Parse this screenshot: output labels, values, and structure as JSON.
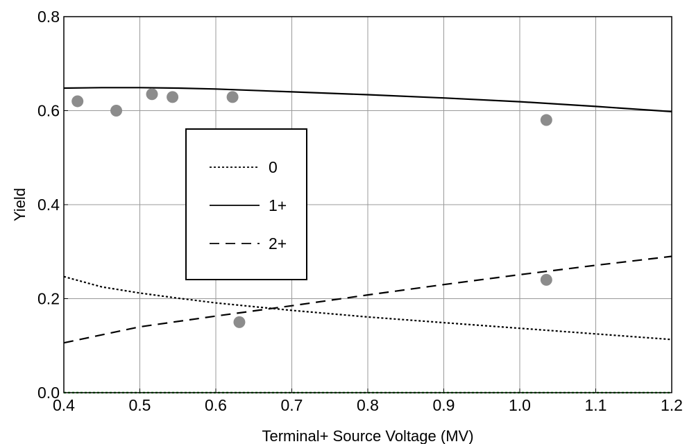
{
  "chart_data": {
    "type": "line",
    "title": "",
    "xlabel": "Terminal+ Source Voltage  (MV)",
    "ylabel": "Yield",
    "xlim": [
      0.4,
      1.2
    ],
    "ylim": [
      0.0,
      0.8
    ],
    "x_ticks": [
      "0.4",
      "0.5",
      "0.6",
      "0.7",
      "0.8",
      "0.9",
      "1.0",
      "1.1",
      "1.2"
    ],
    "y_ticks": [
      "0.0",
      "0.2",
      "0.4",
      "0.6",
      "0.8"
    ],
    "grid": true,
    "legend_position": "center-left",
    "series": [
      {
        "name": "0",
        "style": "dotted",
        "color": "#000000",
        "x": [
          0.4,
          0.45,
          0.5,
          0.55,
          0.6,
          0.65,
          0.7,
          0.8,
          0.9,
          1.0,
          1.1,
          1.2
        ],
        "y": [
          0.247,
          0.225,
          0.212,
          0.201,
          0.191,
          0.183,
          0.175,
          0.161,
          0.149,
          0.137,
          0.125,
          0.113
        ]
      },
      {
        "name": "1+",
        "style": "solid",
        "color": "#000000",
        "x": [
          0.4,
          0.45,
          0.5,
          0.55,
          0.6,
          0.7,
          0.8,
          0.9,
          1.0,
          1.1,
          1.2
        ],
        "y": [
          0.648,
          0.649,
          0.649,
          0.648,
          0.646,
          0.64,
          0.634,
          0.627,
          0.619,
          0.609,
          0.598
        ]
      },
      {
        "name": "2+",
        "style": "dashed",
        "color": "#000000",
        "x": [
          0.4,
          0.5,
          0.6,
          0.7,
          0.8,
          0.9,
          1.0,
          1.1,
          1.2
        ],
        "y": [
          0.106,
          0.14,
          0.163,
          0.185,
          0.208,
          0.23,
          0.251,
          0.271,
          0.29
        ]
      },
      {
        "name": "",
        "style": "dotted",
        "color": "#22aa22",
        "x": [
          0.4,
          1.2
        ],
        "y": [
          0.0,
          0.0
        ]
      }
    ],
    "points": {
      "color": "#8c8c8c",
      "x": [
        0.418,
        0.469,
        0.516,
        0.543,
        0.622,
        0.631,
        1.035,
        1.035
      ],
      "y": [
        0.62,
        0.6,
        0.635,
        0.629,
        0.629,
        0.15,
        0.58,
        0.24
      ]
    }
  }
}
